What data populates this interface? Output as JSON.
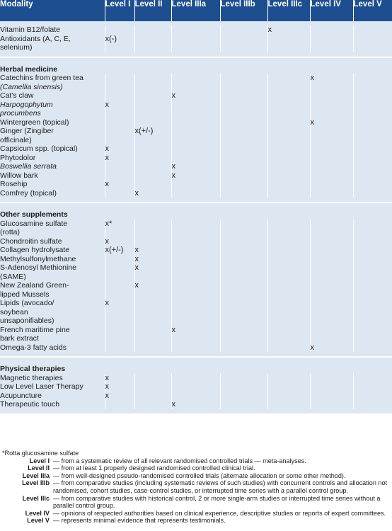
{
  "columns": [
    "Modality",
    "Level I",
    "Level II",
    "Level IIIa",
    "Level IIIb",
    "Level IIIc",
    "Level IV",
    "Level V"
  ],
  "sections": [
    {
      "heading": "",
      "rows": [
        {
          "lines": [
            "Vitamin B12/folate"
          ],
          "marks": [
            "",
            "",
            "",
            "",
            "x",
            "",
            ""
          ]
        },
        {
          "lines": [
            "Antioxidants (A, C, E,",
            "selenium)"
          ],
          "marks": [
            "x(-)",
            "",
            "",
            "",
            "",
            "",
            ""
          ]
        }
      ]
    },
    {
      "heading": "Herbal medicine",
      "rows": [
        {
          "lines": [
            "Catechins from green tea",
            "(Camellia sinensis)"
          ],
          "italic": [
            false,
            true
          ],
          "marks": [
            "",
            "",
            "",
            "",
            "",
            "x",
            ""
          ]
        },
        {
          "lines": [
            "Cat's claw"
          ],
          "marks": [
            "",
            "",
            "x",
            "",
            "",
            "",
            ""
          ]
        },
        {
          "lines": [
            "Harpogophytum",
            "procumbens"
          ],
          "italic": [
            true,
            true
          ],
          "marks": [
            "x",
            "",
            "",
            "",
            "",
            "",
            ""
          ]
        },
        {
          "lines": [
            "Wintergreen (topical)"
          ],
          "marks": [
            "",
            "",
            "",
            "",
            "",
            "x",
            ""
          ]
        },
        {
          "lines": [
            "Ginger (Zingiber",
            "officinale)"
          ],
          "marks": [
            "",
            "x(+/-)",
            "",
            "",
            "",
            "",
            ""
          ]
        },
        {
          "lines": [
            "Capsicum spp. (topical)"
          ],
          "marks": [
            "x",
            "",
            "",
            "",
            "",
            "",
            ""
          ]
        },
        {
          "lines": [
            "Phytodolor"
          ],
          "marks": [
            "x",
            "",
            "",
            "",
            "",
            "",
            ""
          ]
        },
        {
          "lines": [
            "Boswellia serrata"
          ],
          "italic": [
            true
          ],
          "marks": [
            "",
            "",
            "x",
            "",
            "",
            "",
            ""
          ]
        },
        {
          "lines": [
            "Willow bark"
          ],
          "marks": [
            "",
            "",
            "x",
            "",
            "",
            "",
            ""
          ]
        },
        {
          "lines": [
            "Rosehip"
          ],
          "marks": [
            "x",
            "",
            "",
            "",
            "",
            "",
            ""
          ]
        },
        {
          "lines": [
            "Comfrey (topical)"
          ],
          "marks": [
            "",
            "x",
            "",
            "",
            "",
            "",
            ""
          ]
        }
      ]
    },
    {
      "heading": "Other supplements",
      "rows": [
        {
          "lines": [
            "Glucosamine sulfate",
            "(rotta)"
          ],
          "marks": [
            "x*",
            "",
            "",
            "",
            "",
            "",
            ""
          ]
        },
        {
          "lines": [
            "Chondroitin sulfate"
          ],
          "marks": [
            "x",
            "",
            "",
            "",
            "",
            "",
            ""
          ]
        },
        {
          "lines": [
            "Collagen hydrolysate"
          ],
          "marks": [
            "x(+/-)",
            "x",
            "",
            "",
            "",
            "",
            ""
          ]
        },
        {
          "lines": [
            "Methylsulfonylmethane"
          ],
          "marks": [
            "",
            "x",
            "",
            "",
            "",
            "",
            ""
          ]
        },
        {
          "lines": [
            "S-Adenosyl Methionine",
            "(SAME)"
          ],
          "marks": [
            "",
            "x",
            "",
            "",
            "",
            "",
            ""
          ]
        },
        {
          "lines": [
            "New Zealand Green-",
            "lipped Mussels"
          ],
          "marks": [
            "",
            "x",
            "",
            "",
            "",
            "",
            ""
          ]
        },
        {
          "lines": [
            "Lipids (avocado/",
            "soybean",
            "unsaponifiables)"
          ],
          "marks": [
            "x",
            "",
            "",
            "",
            "",
            "",
            ""
          ]
        },
        {
          "lines": [
            "French maritime pine",
            "bark extract"
          ],
          "marks": [
            "",
            "",
            "x",
            "",
            "",
            "",
            ""
          ]
        },
        {
          "lines": [
            "Omega-3 fatty acids"
          ],
          "marks": [
            "",
            "",
            "",
            "",
            "",
            "x",
            ""
          ]
        }
      ]
    },
    {
      "heading": "Physical therapies",
      "rows": [
        {
          "lines": [
            "Magnetic therapies"
          ],
          "marks": [
            "x",
            "",
            "",
            "",
            "",
            "",
            ""
          ]
        },
        {
          "lines": [
            "Low Level Laser Therapy"
          ],
          "marks": [
            "x",
            "",
            "",
            "",
            "",
            "",
            ""
          ]
        },
        {
          "lines": [
            "Acupuncture"
          ],
          "marks": [
            "x",
            "",
            "",
            "",
            "",
            "",
            ""
          ]
        },
        {
          "lines": [
            "Therapeutic touch"
          ],
          "marks": [
            "",
            "",
            "x",
            "",
            "",
            "",
            ""
          ]
        }
      ]
    }
  ],
  "footnote": "*Rotta glucosamine sulfate",
  "definitions": [
    {
      "level": "Level I",
      "text": "— from a systematic review of all relevant randomised controlled trials — meta-analyses."
    },
    {
      "level": "Level II",
      "text": "— from at least 1 properly designed randomised controlled clinical trial."
    },
    {
      "level": "Level IIIa",
      "text": "— from well-designed pseudo-randomised controlled trials (alternate allocation or some other method)."
    },
    {
      "level": "Level IIIb",
      "text": "— from comparative studies (including systematic reviews of such studies) with concurrent controls and allocation not randomised, cohort studies, case-control studies, or interrupted time series with a parallel control group."
    },
    {
      "level": "Level IIIc",
      "text": "— from comparative studies with historical control, 2 or more single-arm studies or interrupted time series without a parallel control group."
    },
    {
      "level": "Level IV",
      "text": "— opinions of respected authorities based on clinical experience, descriptive studies or reports of expert committees."
    },
    {
      "level": "Level V",
      "text": "— represents minimal evidence that represents testimonials."
    }
  ],
  "colors": {
    "header_bg": "#1d4e8f",
    "section_bg": "#dde7f2",
    "header_text": "#ffffff"
  }
}
